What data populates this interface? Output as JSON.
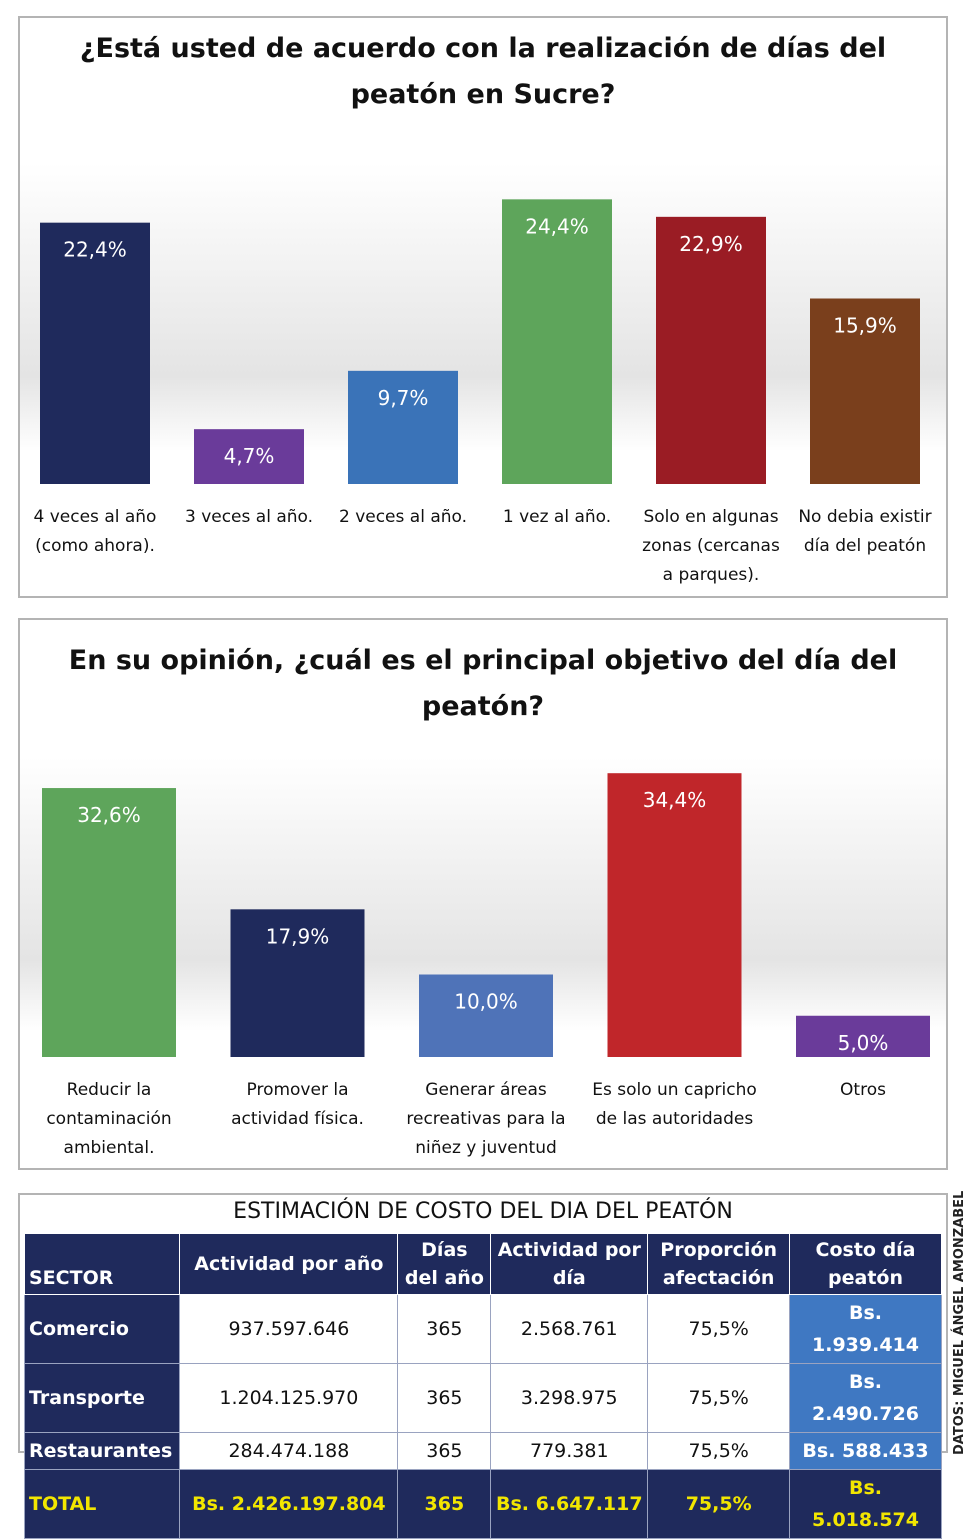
{
  "chart_data": [
    {
      "type": "bar",
      "title": "¿Está usted de acuerdo con la realización de días del peatón en Sucre?",
      "title_lines": [
        "¿Está usted de acuerdo con la realización de días del",
        "peatón en Sucre?"
      ],
      "unit": "%",
      "ylim": [
        0,
        30
      ],
      "grid": false,
      "categories": [
        [
          "4 veces al año",
          "(como ahora)."
        ],
        [
          "3 veces al año."
        ],
        [
          "2 veces al año."
        ],
        [
          "1 vez al año."
        ],
        [
          "Solo en algunas",
          "zonas (cercanas",
          "a parques)."
        ],
        [
          "No debia existir",
          "día del peatón"
        ]
      ],
      "values": [
        22.4,
        4.7,
        9.7,
        24.4,
        22.9,
        15.9
      ],
      "value_labels": [
        "22,4%",
        "4,7%",
        "9,7%",
        "24,4%",
        "22,9%",
        "15,9%"
      ],
      "colors": [
        "#1f2a5c",
        "#6a3b9a",
        "#3a73b8",
        "#5ea55b",
        "#9a1c24",
        "#7a3f1c"
      ]
    },
    {
      "type": "bar",
      "title": "En su opinión, ¿cuál es el principal objetivo del día del peatón?",
      "title_lines": [
        "En su opinión, ¿cuál es el principal objetivo del día del",
        "peatón?"
      ],
      "unit": "%",
      "ylim": [
        0,
        40
      ],
      "grid": false,
      "categories": [
        [
          "Reducir la",
          "contaminación",
          "ambiental."
        ],
        [
          "Promover la",
          "actividad física."
        ],
        [
          "Generar áreas",
          "recreativas para la",
          "niñez y juventud"
        ],
        [
          "Es solo un capricho",
          "de las autoridades"
        ],
        [
          "Otros"
        ]
      ],
      "values": [
        32.6,
        17.9,
        10.0,
        34.4,
        5.0
      ],
      "value_labels": [
        "32,6%",
        "17,9%",
        "10,0%",
        "34,4%",
        "5,0%"
      ],
      "colors": [
        "#5ea55b",
        "#1f2a5c",
        "#4f73b8",
        "#c0262a",
        "#6a3b9a"
      ]
    },
    {
      "type": "table",
      "title": "ESTIMACIÓN DE COSTO DEL DIA DEL PEATÓN",
      "headers": [
        "SECTOR",
        "Actividad por año",
        "Días del año",
        "Actividad por día",
        "Proporción afectación",
        "Costo día peatón"
      ],
      "rows": [
        [
          "Comercio",
          "937.597.646",
          "365",
          "2.568.761",
          "75,5%",
          "Bs. 1.939.414"
        ],
        [
          "Transporte",
          "1.204.125.970",
          "365",
          "3.298.975",
          "75,5%",
          "Bs. 2.490.726"
        ],
        [
          "Restaurantes",
          "284.474.188",
          "365",
          "779.381",
          "75,5%",
          "Bs. 588.433"
        ]
      ],
      "total": [
        "TOTAL",
        "Bs. 2.426.197.804",
        "365",
        "Bs. 6.647.117",
        "75,5%",
        "Bs. 5.018.574"
      ]
    }
  ],
  "credit": "DATOS: MIGUEL ÁNGEL AMONZABEL"
}
